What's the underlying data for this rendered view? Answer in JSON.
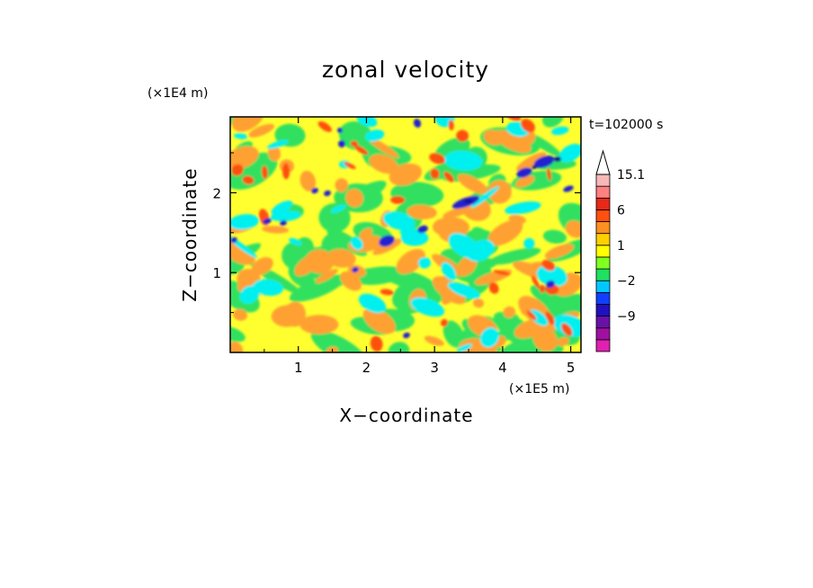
{
  "chart_data": {
    "type": "heatmap",
    "title": "zonal velocity",
    "xlabel": "X−coordinate",
    "ylabel": "Z−coordinate",
    "x_scale_note": "(×1E5 m)",
    "y_scale_note": "(×1E4 m)",
    "time_label": "t=102000 s",
    "xlim": [
      0,
      5.15
    ],
    "ylim": [
      0,
      2.95
    ],
    "x_ticks": [
      1,
      2,
      3,
      4,
      5
    ],
    "y_ticks": [
      1,
      2
    ],
    "x_tick_labels": [
      "1",
      "2",
      "3",
      "4",
      "5"
    ],
    "y_tick_labels": [
      "1",
      "2"
    ],
    "colorbar": {
      "labels": [
        {
          "text": "15.1",
          "level": 15.1
        },
        {
          "text": "6",
          "level": 6
        },
        {
          "text": "1",
          "level": 1
        },
        {
          "text": "−2",
          "level": -2
        },
        {
          "text": "−9",
          "level": -9
        }
      ],
      "levels": [
        -15,
        -12,
        -9,
        -6,
        -3,
        -2,
        -1,
        0,
        1,
        2,
        4,
        6,
        9,
        12,
        15.1
      ],
      "colors": [
        "#e020b0",
        "#a010a0",
        "#6a10a8",
        "#2010c0",
        "#1040ff",
        "#00c8ff",
        "#20e060",
        "#80ff20",
        "#ffff00",
        "#ffd000",
        "#ff9020",
        "#ff5010",
        "#e82818",
        "#ff8080",
        "#f8b8b8"
      ]
    },
    "field_colors": {
      "yellow": "#ffff30",
      "green": "#30e060",
      "cyan": "#00f0f0",
      "orange": "#ffa030",
      "red": "#ff5010",
      "blue": "#2020d0",
      "navy": "#101090",
      "purple": "#8010a0"
    }
  }
}
